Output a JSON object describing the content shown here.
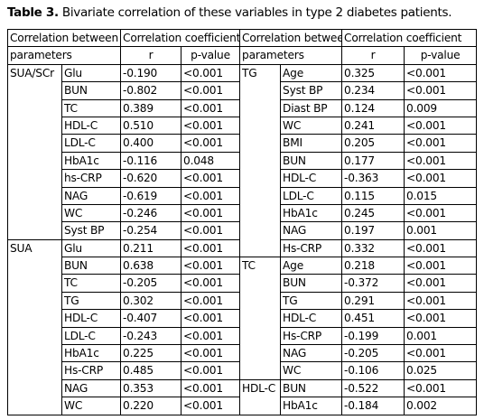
{
  "title": {
    "label": "Table 3.",
    "text": "Bivariate correlation of these variables in type 2 diabetes patients."
  },
  "table": {
    "header": {
      "between": "Correlation between",
      "coefficient": "Correlation coefficient",
      "parameters": "parameters",
      "r": "r",
      "p": "p-value"
    },
    "rows": [
      {
        "left": {
          "group": "SUA/SCr",
          "parameter": "Glu",
          "r": "-0.190",
          "p": "<0.001"
        },
        "right": {
          "group": "TG",
          "parameter": "Age",
          "r": "0.325",
          "p": "<0.001"
        }
      },
      {
        "left": {
          "parameter": "BUN",
          "r": "-0.802",
          "p": "<0.001"
        },
        "right": {
          "parameter": "Syst BP",
          "r": "0.234",
          "p": "<0.001"
        }
      },
      {
        "left": {
          "parameter": "TC",
          "r": "0.389",
          "p": "<0.001"
        },
        "right": {
          "parameter": "Diast BP",
          "r": "0.124",
          "p": "0.009"
        }
      },
      {
        "left": {
          "parameter": "HDL-C",
          "r": "0.510",
          "p": "<0.001"
        },
        "right": {
          "parameter": "WC",
          "r": "0.241",
          "p": "<0.001"
        }
      },
      {
        "left": {
          "parameter": "LDL-C",
          "r": "0.400",
          "p": "<0.001"
        },
        "right": {
          "parameter": "BMI",
          "r": "0.205",
          "p": "<0.001"
        }
      },
      {
        "left": {
          "parameter": "HbA1c",
          "r": "-0.116",
          "p": "0.048"
        },
        "right": {
          "parameter": "BUN",
          "r": "0.177",
          "p": "<0.001"
        }
      },
      {
        "left": {
          "parameter": "hs-CRP",
          "r": "-0.620",
          "p": "<0.001"
        },
        "right": {
          "parameter": "HDL-C",
          "r": "-0.363",
          "p": "<0.001"
        }
      },
      {
        "left": {
          "parameter": "NAG",
          "r": "-0.619",
          "p": "<0.001"
        },
        "right": {
          "parameter": "LDL-C",
          "r": "0.115",
          "p": "0.015"
        }
      },
      {
        "left": {
          "parameter": "WC",
          "r": "-0.246",
          "p": "<0.001"
        },
        "right": {
          "parameter": "HbA1c",
          "r": "0.245",
          "p": "<0.001"
        }
      },
      {
        "left": {
          "parameter": "Syst BP",
          "r": "-0.254",
          "p": "<0.001"
        },
        "right": {
          "parameter": "NAG",
          "r": "0.197",
          "p": "0.001"
        }
      },
      {
        "left": {
          "group": "SUA",
          "parameter": "Glu",
          "r": "0.211",
          "p": "<0.001"
        },
        "right": {
          "parameter": "Hs-CRP",
          "r": "0.332",
          "p": "<0.001"
        }
      },
      {
        "left": {
          "parameter": "BUN",
          "r": "0.638",
          "p": "<0.001"
        },
        "right": {
          "group": "TC",
          "parameter": "Age",
          "r": "0.218",
          "p": "<0.001"
        }
      },
      {
        "left": {
          "parameter": "TC",
          "r": "-0.205",
          "p": "<0.001"
        },
        "right": {
          "parameter": "BUN",
          "r": "-0.372",
          "p": "<0.001"
        }
      },
      {
        "left": {
          "parameter": "TG",
          "r": "0.302",
          "p": "<0.001"
        },
        "right": {
          "parameter": "TG",
          "r": "0.291",
          "p": "<0.001"
        }
      },
      {
        "left": {
          "parameter": "HDL-C",
          "r": "-0.407",
          "p": "<0.001"
        },
        "right": {
          "parameter": "HDL-C",
          "r": "0.451",
          "p": "<0.001"
        }
      },
      {
        "left": {
          "parameter": "LDL-C",
          "r": "-0.243",
          "p": "<0.001"
        },
        "right": {
          "parameter": "Hs-CRP",
          "r": "-0.199",
          "p": "0.001"
        }
      },
      {
        "left": {
          "parameter": "HbA1c",
          "r": "0.225",
          "p": "<0.001"
        },
        "right": {
          "parameter": "NAG",
          "r": "-0.205",
          "p": "<0.001"
        }
      },
      {
        "left": {
          "parameter": "Hs-CRP",
          "r": "0.485",
          "p": "<0.001"
        },
        "right": {
          "parameter": "WC",
          "r": "-0.106",
          "p": "0.025"
        }
      },
      {
        "left": {
          "parameter": "NAG",
          "r": "0.353",
          "p": "<0.001"
        },
        "right": {
          "group": "HDL-C",
          "parameter": "BUN",
          "r": "-0.522",
          "p": "<0.001"
        }
      },
      {
        "left": {
          "parameter": "WC",
          "r": "0.220",
          "p": "<0.001"
        },
        "right": {
          "parameter": "HbA1c",
          "r": "-0.184",
          "p": "0.002"
        }
      }
    ]
  }
}
